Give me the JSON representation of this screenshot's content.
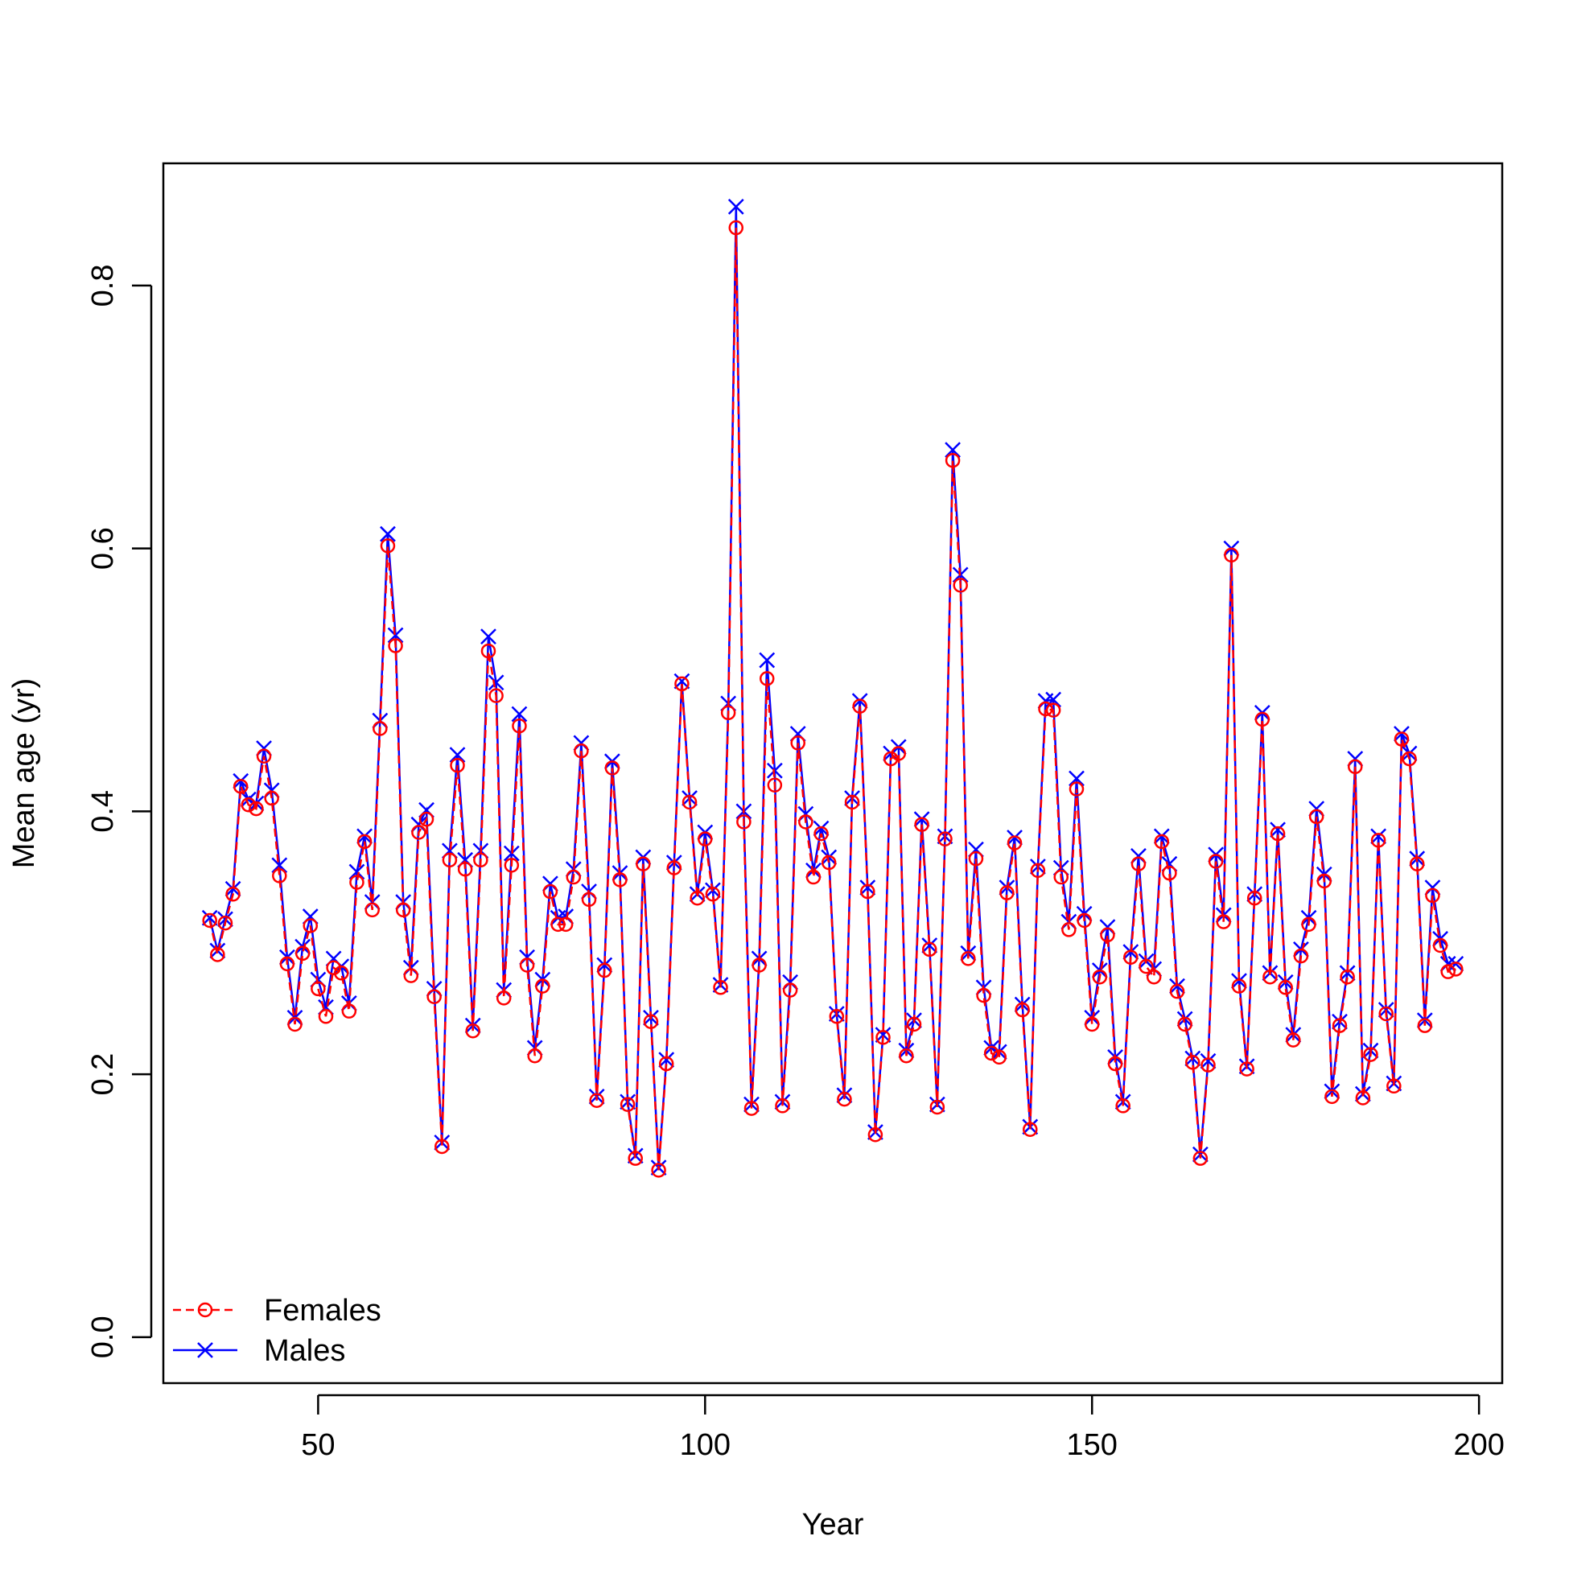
{
  "chart_data": {
    "type": "line",
    "title": "",
    "xlabel": "Year",
    "ylabel": "Mean age (yr)",
    "xlim": [
      30,
      203
    ],
    "ylim": [
      -0.035,
      0.893
    ],
    "xticks": [
      "50",
      "100",
      "150",
      "200"
    ],
    "yticks": [
      "0.0",
      "0.2",
      "0.4",
      "0.6",
      "0.8"
    ],
    "grid": false,
    "legend_position": "bottom-left",
    "x_start": 36,
    "x_end": 197,
    "series": [
      {
        "name": "Females",
        "color": "#ff0000",
        "marker": "circle",
        "line_style": "dashed",
        "values": [
          0.317,
          0.291,
          0.315,
          0.337,
          0.419,
          0.405,
          0.402,
          0.442,
          0.41,
          0.351,
          0.284,
          0.238,
          0.292,
          0.313,
          0.265,
          0.244,
          0.281,
          0.277,
          0.248,
          0.346,
          0.377,
          0.325,
          0.463,
          0.602,
          0.526,
          0.325,
          0.275,
          0.384,
          0.394,
          0.259,
          0.145,
          0.363,
          0.435,
          0.356,
          0.233,
          0.363,
          0.522,
          0.488,
          0.258,
          0.359,
          0.465,
          0.283,
          0.214,
          0.267,
          0.339,
          0.314,
          0.314,
          0.35,
          0.446,
          0.333,
          0.18,
          0.279,
          0.433,
          0.348,
          0.177,
          0.136,
          0.36,
          0.24,
          0.127,
          0.208,
          0.357,
          0.497,
          0.407,
          0.334,
          0.379,
          0.337,
          0.266,
          0.475,
          0.844,
          0.392,
          0.174,
          0.283,
          0.501,
          0.42,
          0.176,
          0.264,
          0.452,
          0.392,
          0.35,
          0.383,
          0.361,
          0.244,
          0.181,
          0.407,
          0.48,
          0.339,
          0.154,
          0.228,
          0.44,
          0.444,
          0.214,
          0.238,
          0.39,
          0.295,
          0.175,
          0.379,
          0.667,
          0.572,
          0.288,
          0.364,
          0.26,
          0.216,
          0.213,
          0.338,
          0.376,
          0.249,
          0.158,
          0.355,
          0.478,
          0.477,
          0.35,
          0.31,
          0.417,
          0.317,
          0.238,
          0.274,
          0.306,
          0.208,
          0.176,
          0.289,
          0.36,
          0.282,
          0.274,
          0.377,
          0.353,
          0.263,
          0.238,
          0.209,
          0.136,
          0.207,
          0.362,
          0.316,
          0.595,
          0.267,
          0.204,
          0.334,
          0.47,
          0.274,
          0.383,
          0.266,
          0.226,
          0.29,
          0.314,
          0.396,
          0.347,
          0.183,
          0.237,
          0.274,
          0.434,
          0.182,
          0.215,
          0.378,
          0.246,
          0.191,
          0.455,
          0.44,
          0.36,
          0.237,
          0.336,
          0.298,
          0.278,
          0.28
        ]
      },
      {
        "name": "Males",
        "color": "#0000ff",
        "marker": "x",
        "line_style": "solid",
        "values": [
          0.319,
          0.294,
          0.318,
          0.341,
          0.423,
          0.409,
          0.406,
          0.448,
          0.416,
          0.359,
          0.289,
          0.243,
          0.297,
          0.32,
          0.272,
          0.251,
          0.288,
          0.282,
          0.254,
          0.354,
          0.381,
          0.331,
          0.469,
          0.611,
          0.534,
          0.331,
          0.281,
          0.39,
          0.401,
          0.265,
          0.148,
          0.37,
          0.443,
          0.363,
          0.237,
          0.37,
          0.533,
          0.498,
          0.264,
          0.368,
          0.474,
          0.289,
          0.22,
          0.272,
          0.345,
          0.319,
          0.32,
          0.356,
          0.452,
          0.339,
          0.183,
          0.283,
          0.438,
          0.353,
          0.179,
          0.138,
          0.365,
          0.243,
          0.129,
          0.211,
          0.361,
          0.499,
          0.41,
          0.337,
          0.384,
          0.34,
          0.268,
          0.482,
          0.86,
          0.4,
          0.177,
          0.288,
          0.515,
          0.431,
          0.179,
          0.27,
          0.459,
          0.398,
          0.355,
          0.387,
          0.365,
          0.246,
          0.184,
          0.41,
          0.484,
          0.342,
          0.156,
          0.23,
          0.444,
          0.449,
          0.218,
          0.241,
          0.394,
          0.298,
          0.177,
          0.381,
          0.675,
          0.58,
          0.292,
          0.371,
          0.266,
          0.22,
          0.217,
          0.342,
          0.38,
          0.253,
          0.16,
          0.358,
          0.484,
          0.485,
          0.357,
          0.316,
          0.425,
          0.322,
          0.243,
          0.279,
          0.312,
          0.213,
          0.179,
          0.293,
          0.366,
          0.286,
          0.28,
          0.381,
          0.36,
          0.267,
          0.242,
          0.212,
          0.139,
          0.21,
          0.367,
          0.321,
          0.6,
          0.271,
          0.206,
          0.337,
          0.475,
          0.277,
          0.386,
          0.27,
          0.23,
          0.295,
          0.319,
          0.402,
          0.352,
          0.187,
          0.24,
          0.277,
          0.44,
          0.185,
          0.218,
          0.381,
          0.249,
          0.193,
          0.459,
          0.444,
          0.364,
          0.241,
          0.342,
          0.303,
          0.284,
          0.284
        ]
      }
    ]
  }
}
